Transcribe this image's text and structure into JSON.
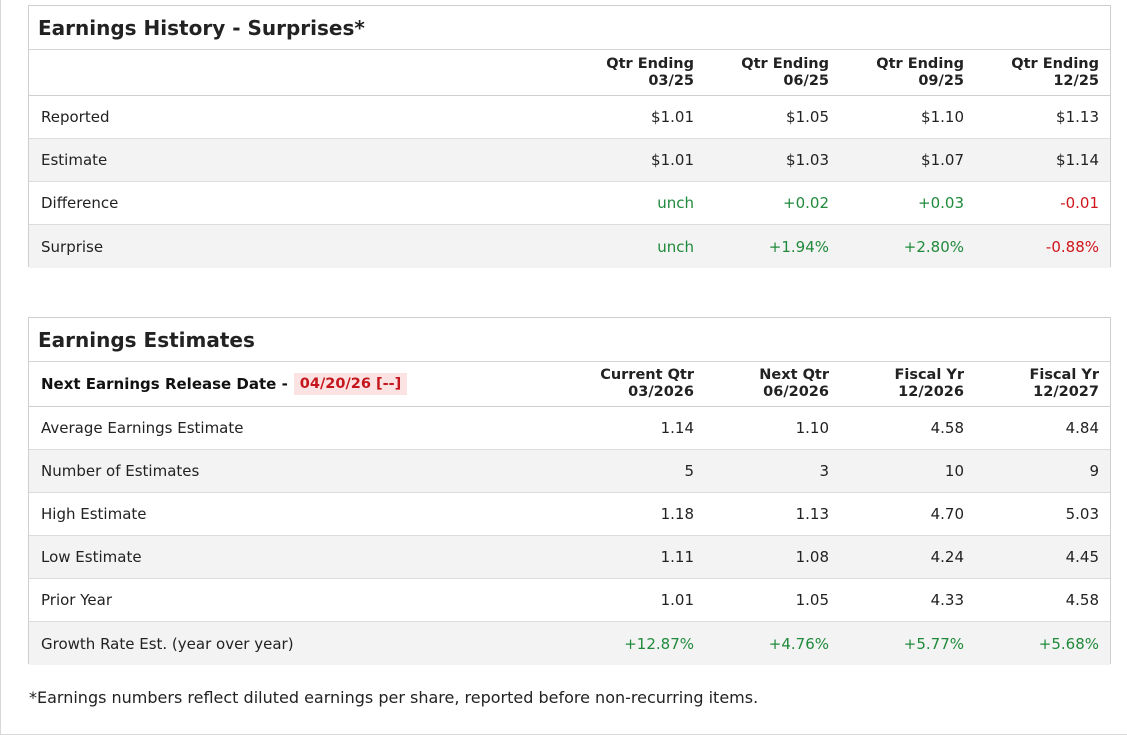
{
  "surprises": {
    "title": "Earnings History - Surprises*",
    "columns": [
      {
        "line1": "Qtr Ending",
        "line2": "03/25"
      },
      {
        "line1": "Qtr Ending",
        "line2": "06/25"
      },
      {
        "line1": "Qtr Ending",
        "line2": "09/25"
      },
      {
        "line1": "Qtr Ending",
        "line2": "12/25"
      }
    ],
    "rows": [
      {
        "label": "Reported",
        "values": [
          "$1.01",
          "$1.05",
          "$1.10",
          "$1.13"
        ]
      },
      {
        "label": "Estimate",
        "values": [
          "$1.01",
          "$1.03",
          "$1.07",
          "$1.14"
        ]
      },
      {
        "label": "Difference",
        "values": [
          "unch",
          "+0.02",
          "+0.03",
          "-0.01"
        ]
      },
      {
        "label": "Surprise",
        "values": [
          "unch",
          "+1.94%",
          "+2.80%",
          "-0.88%"
        ]
      }
    ]
  },
  "estimates": {
    "title": "Earnings Estimates",
    "release_label": "Next Earnings Release Date -",
    "release_date": "04/20/26 [--]",
    "columns": [
      {
        "line1": "Current Qtr",
        "line2": "03/2026"
      },
      {
        "line1": "Next Qtr",
        "line2": "06/2026"
      },
      {
        "line1": "Fiscal Yr",
        "line2": "12/2026"
      },
      {
        "line1": "Fiscal Yr",
        "line2": "12/2027"
      }
    ],
    "rows": [
      {
        "label": "Average Earnings Estimate",
        "values": [
          "1.14",
          "1.10",
          "4.58",
          "4.84"
        ]
      },
      {
        "label": "Number of Estimates",
        "values": [
          "5",
          "3",
          "10",
          "9"
        ]
      },
      {
        "label": "High Estimate",
        "values": [
          "1.18",
          "1.13",
          "4.70",
          "5.03"
        ]
      },
      {
        "label": "Low Estimate",
        "values": [
          "1.11",
          "1.08",
          "4.24",
          "4.45"
        ]
      },
      {
        "label": "Prior Year",
        "values": [
          "1.01",
          "1.05",
          "4.33",
          "4.58"
        ]
      },
      {
        "label": "Growth Rate Est. (year over year)",
        "values": [
          "+12.87%",
          "+4.76%",
          "+5.77%",
          "+5.68%"
        ]
      }
    ]
  },
  "footnote": "*Earnings numbers reflect diluted earnings per share, reported before non-recurring items.",
  "colors": {
    "positive": "#1f8a3b",
    "negative": "#d0151b",
    "release_bg": "#fbe3e3"
  }
}
